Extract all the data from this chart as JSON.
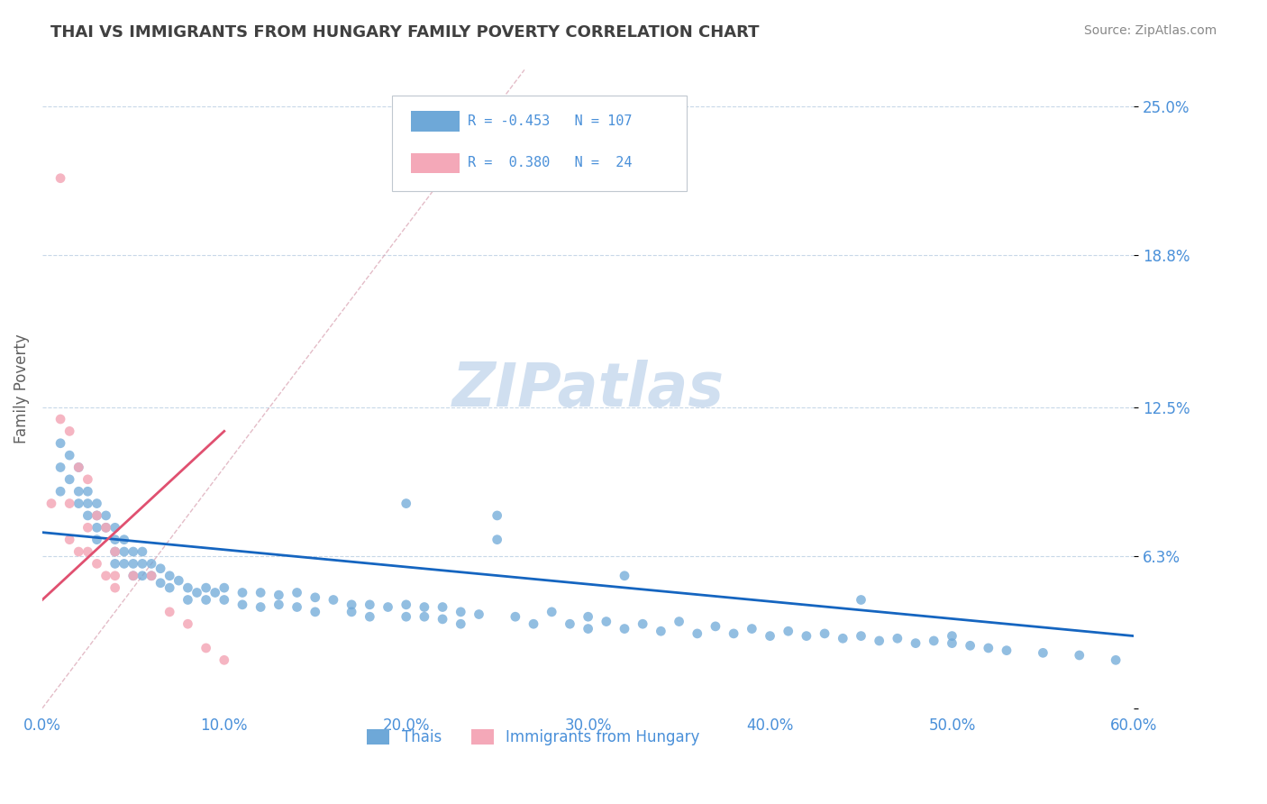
{
  "title": "THAI VS IMMIGRANTS FROM HUNGARY FAMILY POVERTY CORRELATION CHART",
  "source": "Source: ZipAtlas.com",
  "xlabel": "",
  "ylabel": "Family Poverty",
  "xlim": [
    0.0,
    0.6
  ],
  "ylim": [
    0.0,
    0.265
  ],
  "yticks": [
    0.0,
    0.063,
    0.125,
    0.188,
    0.25
  ],
  "ytick_labels": [
    "",
    "6.3%",
    "12.5%",
    "18.8%",
    "25.0%"
  ],
  "xticks": [
    0.0,
    0.1,
    0.2,
    0.3,
    0.4,
    0.5,
    0.6
  ],
  "xtick_labels": [
    "0.0%",
    "10.0%",
    "20.0%",
    "30.0%",
    "40.0%",
    "50.0%",
    "60.0%"
  ],
  "blue_color": "#6ea8d8",
  "pink_color": "#f4a8b8",
  "trend_blue_color": "#1565c0",
  "trend_pink_color": "#e05070",
  "legend_R_blue": "-0.453",
  "legend_N_blue": "107",
  "legend_R_pink": "0.380",
  "legend_N_pink": "24",
  "label_blue": "Thais",
  "label_pink": "Immigrants from Hungary",
  "blue_scatter_x": [
    0.01,
    0.01,
    0.01,
    0.015,
    0.015,
    0.02,
    0.02,
    0.02,
    0.025,
    0.025,
    0.025,
    0.03,
    0.03,
    0.03,
    0.03,
    0.035,
    0.035,
    0.04,
    0.04,
    0.04,
    0.04,
    0.045,
    0.045,
    0.045,
    0.05,
    0.05,
    0.05,
    0.055,
    0.055,
    0.055,
    0.06,
    0.06,
    0.065,
    0.065,
    0.07,
    0.07,
    0.075,
    0.08,
    0.08,
    0.085,
    0.09,
    0.09,
    0.095,
    0.1,
    0.1,
    0.11,
    0.11,
    0.12,
    0.12,
    0.13,
    0.13,
    0.14,
    0.14,
    0.15,
    0.15,
    0.16,
    0.17,
    0.17,
    0.18,
    0.18,
    0.19,
    0.2,
    0.2,
    0.21,
    0.21,
    0.22,
    0.22,
    0.23,
    0.23,
    0.24,
    0.25,
    0.26,
    0.27,
    0.28,
    0.29,
    0.3,
    0.3,
    0.31,
    0.32,
    0.33,
    0.34,
    0.35,
    0.36,
    0.37,
    0.38,
    0.39,
    0.4,
    0.41,
    0.42,
    0.43,
    0.44,
    0.45,
    0.46,
    0.47,
    0.48,
    0.49,
    0.5,
    0.51,
    0.52,
    0.53,
    0.55,
    0.57,
    0.59,
    0.2,
    0.25,
    0.32,
    0.45,
    0.5
  ],
  "blue_scatter_y": [
    0.11,
    0.1,
    0.09,
    0.105,
    0.095,
    0.1,
    0.09,
    0.085,
    0.09,
    0.085,
    0.08,
    0.085,
    0.08,
    0.075,
    0.07,
    0.08,
    0.075,
    0.075,
    0.07,
    0.065,
    0.06,
    0.07,
    0.065,
    0.06,
    0.065,
    0.06,
    0.055,
    0.065,
    0.06,
    0.055,
    0.06,
    0.055,
    0.058,
    0.052,
    0.055,
    0.05,
    0.053,
    0.05,
    0.045,
    0.048,
    0.05,
    0.045,
    0.048,
    0.05,
    0.045,
    0.048,
    0.043,
    0.048,
    0.042,
    0.047,
    0.043,
    0.048,
    0.042,
    0.046,
    0.04,
    0.045,
    0.043,
    0.04,
    0.043,
    0.038,
    0.042,
    0.043,
    0.038,
    0.042,
    0.038,
    0.042,
    0.037,
    0.04,
    0.035,
    0.039,
    0.08,
    0.038,
    0.035,
    0.04,
    0.035,
    0.038,
    0.033,
    0.036,
    0.033,
    0.035,
    0.032,
    0.036,
    0.031,
    0.034,
    0.031,
    0.033,
    0.03,
    0.032,
    0.03,
    0.031,
    0.029,
    0.03,
    0.028,
    0.029,
    0.027,
    0.028,
    0.027,
    0.026,
    0.025,
    0.024,
    0.023,
    0.022,
    0.02,
    0.085,
    0.07,
    0.055,
    0.045,
    0.03
  ],
  "pink_scatter_x": [
    0.005,
    0.01,
    0.01,
    0.015,
    0.015,
    0.02,
    0.02,
    0.025,
    0.025,
    0.03,
    0.03,
    0.035,
    0.035,
    0.04,
    0.04,
    0.05,
    0.06,
    0.07,
    0.08,
    0.09,
    0.1,
    0.015,
    0.025,
    0.04
  ],
  "pink_scatter_y": [
    0.085,
    0.22,
    0.12,
    0.085,
    0.07,
    0.1,
    0.065,
    0.095,
    0.065,
    0.08,
    0.06,
    0.075,
    0.055,
    0.065,
    0.05,
    0.055,
    0.055,
    0.04,
    0.035,
    0.025,
    0.02,
    0.115,
    0.075,
    0.055
  ],
  "blue_trend_x": [
    0.0,
    0.6
  ],
  "blue_trend_y": [
    0.073,
    0.03
  ],
  "pink_trend_x": [
    0.0,
    0.1
  ],
  "pink_trend_y": [
    0.045,
    0.115
  ],
  "diag_line_x": [
    0.0,
    0.265
  ],
  "diag_line_y": [
    0.0,
    0.265
  ],
  "title_color": "#404040",
  "axis_label_color": "#606060",
  "tick_label_color": "#4a90d9",
  "watermark_text": "ZIPatlas",
  "watermark_color": "#d0dff0",
  "grid_color": "#c8d8e8",
  "legend_text_color": "#4a90d9"
}
